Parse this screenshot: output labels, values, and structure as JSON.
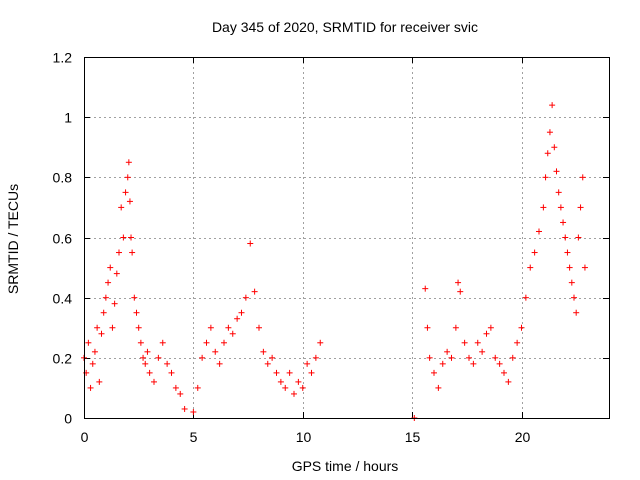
{
  "chart_data": {
    "type": "scatter",
    "title": "Day 345 of 2020, SRMTID for receiver svic",
    "xlabel": "GPS time / hours",
    "ylabel": "SRMTID / TECUs",
    "xlim": [
      0,
      24
    ],
    "ylim": [
      0,
      1.2
    ],
    "xticks": [
      0,
      5,
      10,
      15,
      20
    ],
    "xtick_labels": [
      "0",
      "5",
      "10",
      "15",
      "20"
    ],
    "yticks": [
      0,
      0.2,
      0.4,
      0.6,
      0.8,
      1.0,
      1.2
    ],
    "ytick_labels": [
      "0",
      "0.2",
      "0.4",
      "0.6",
      "0.8",
      "1",
      "1.2"
    ],
    "grid": true,
    "marker": "+",
    "color": "#ff0000",
    "series": [
      {
        "name": "SRMTID",
        "x": [
          0.0,
          0.1,
          0.2,
          0.3,
          0.4,
          0.5,
          0.6,
          0.7,
          0.8,
          0.9,
          1.0,
          1.1,
          1.2,
          1.3,
          1.4,
          1.5,
          1.6,
          1.7,
          1.8,
          1.9,
          2.0,
          2.05,
          2.1,
          2.15,
          2.2,
          2.3,
          2.4,
          2.5,
          2.6,
          2.7,
          2.8,
          2.9,
          3.0,
          3.2,
          3.4,
          3.6,
          3.8,
          4.0,
          4.2,
          4.4,
          4.6,
          5.0,
          5.2,
          5.4,
          5.6,
          5.8,
          6.0,
          6.2,
          6.4,
          6.6,
          6.8,
          7.0,
          7.2,
          7.4,
          7.6,
          7.8,
          8.0,
          8.2,
          8.4,
          8.6,
          8.8,
          9.0,
          9.2,
          9.4,
          9.6,
          9.8,
          10.0,
          10.2,
          10.4,
          10.6,
          10.8,
          15.1,
          15.6,
          15.7,
          15.8,
          16.0,
          16.2,
          16.4,
          16.6,
          16.8,
          17.0,
          17.1,
          17.2,
          17.4,
          17.6,
          17.8,
          18.0,
          18.2,
          18.4,
          18.6,
          18.8,
          19.0,
          19.2,
          19.4,
          19.6,
          19.8,
          20.0,
          20.2,
          20.4,
          20.6,
          20.8,
          21.0,
          21.1,
          21.2,
          21.3,
          21.4,
          21.5,
          21.6,
          21.7,
          21.8,
          21.9,
          22.0,
          22.1,
          22.2,
          22.3,
          22.4,
          22.5,
          22.6,
          22.7,
          22.8,
          22.9
        ],
        "y": [
          0.2,
          0.15,
          0.25,
          0.1,
          0.18,
          0.22,
          0.3,
          0.12,
          0.28,
          0.35,
          0.4,
          0.45,
          0.5,
          0.3,
          0.38,
          0.48,
          0.55,
          0.7,
          0.6,
          0.75,
          0.8,
          0.85,
          0.72,
          0.6,
          0.55,
          0.4,
          0.35,
          0.3,
          0.25,
          0.2,
          0.18,
          0.22,
          0.15,
          0.12,
          0.2,
          0.25,
          0.18,
          0.15,
          0.1,
          0.08,
          0.03,
          0.02,
          0.1,
          0.2,
          0.25,
          0.3,
          0.22,
          0.18,
          0.25,
          0.3,
          0.28,
          0.33,
          0.35,
          0.4,
          0.58,
          0.42,
          0.3,
          0.22,
          0.18,
          0.2,
          0.15,
          0.12,
          0.1,
          0.15,
          0.08,
          0.12,
          0.1,
          0.18,
          0.15,
          0.2,
          0.25,
          0.0,
          0.43,
          0.3,
          0.2,
          0.15,
          0.1,
          0.18,
          0.22,
          0.2,
          0.3,
          0.45,
          0.42,
          0.25,
          0.2,
          0.18,
          0.25,
          0.22,
          0.28,
          0.3,
          0.2,
          0.18,
          0.15,
          0.12,
          0.2,
          0.25,
          0.3,
          0.4,
          0.5,
          0.55,
          0.62,
          0.7,
          0.8,
          0.88,
          0.95,
          1.04,
          0.9,
          0.82,
          0.75,
          0.7,
          0.65,
          0.6,
          0.55,
          0.5,
          0.45,
          0.4,
          0.35,
          0.6,
          0.7,
          0.8,
          0.5
        ]
      }
    ]
  }
}
